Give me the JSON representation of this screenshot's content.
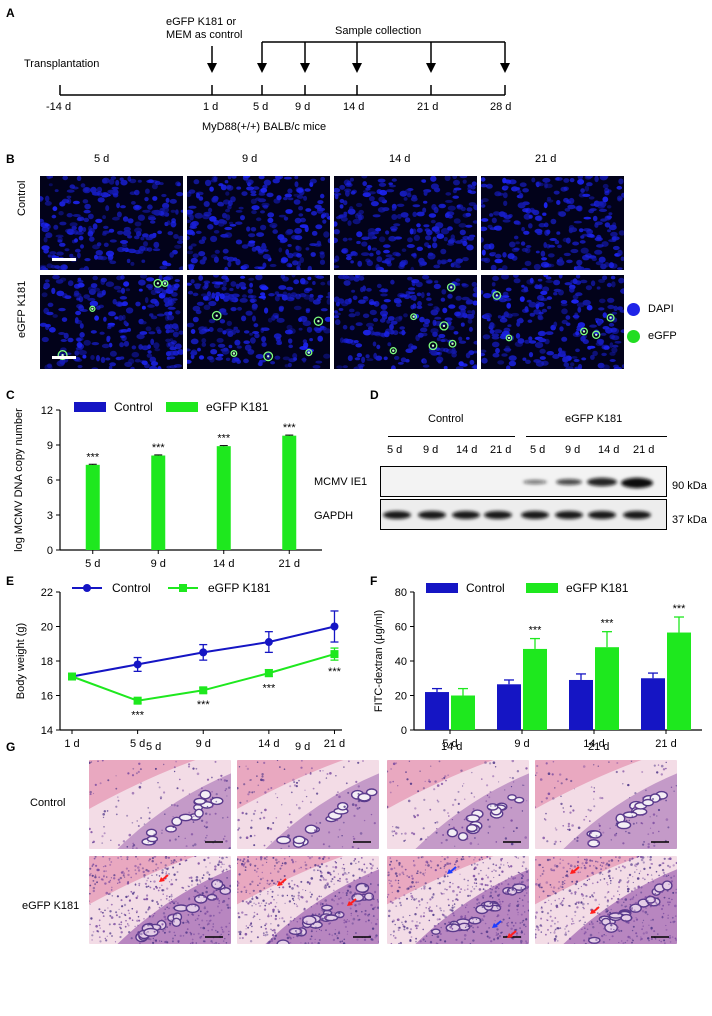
{
  "panels": {
    "A": "A",
    "B": "B",
    "C": "C",
    "D": "D",
    "E": "E",
    "F": "F",
    "G": "G"
  },
  "panelA": {
    "transplantation": "Transplantation",
    "injection_line1": "eGFP K181 or",
    "injection_line2": "MEM as control",
    "sample_collection": "Sample collection",
    "mice": "MyD88(+/+) BALB/c mice",
    "days": [
      "-14 d",
      "1 d",
      "5 d",
      "9 d",
      "14 d",
      "21 d",
      "28 d"
    ]
  },
  "panelB": {
    "columns": [
      "5 d",
      "9 d",
      "14 d",
      "21 d"
    ],
    "rows": [
      "Control",
      "eGFP K181"
    ],
    "legend": [
      {
        "label": "DAPI",
        "color": "#1f24e8"
      },
      {
        "label": "eGFP",
        "color": "#22dd22"
      }
    ]
  },
  "panelD": {
    "groups": [
      "Control",
      "eGFP K181"
    ],
    "lanes": [
      "5 d",
      "9 d",
      "14 d",
      "21 d",
      "5 d",
      "9 d",
      "14 d",
      "21 d"
    ],
    "rows": [
      {
        "name": "MCMV IE1",
        "size": "90 kDa"
      },
      {
        "name": "GAPDH",
        "size": "37 kDa"
      }
    ]
  },
  "panelG": {
    "columns": [
      "5 d",
      "9 d",
      "14 d",
      "21 d"
    ],
    "rows": [
      "Control",
      "eGFP K181"
    ]
  },
  "colors": {
    "control": "#1515c4",
    "egfp": "#1ee81e"
  },
  "chart_data": [
    {
      "panel": "C",
      "type": "bar",
      "ylabel": "log MCMV DNA copy number",
      "xlabel": "",
      "categories": [
        "5 d",
        "9 d",
        "14 d",
        "21 d"
      ],
      "ylim": [
        0,
        12
      ],
      "yticks": [
        0,
        3,
        6,
        9,
        12
      ],
      "series": [
        {
          "name": "Control",
          "values": [
            0,
            0,
            0,
            0
          ]
        },
        {
          "name": "eGFP K181",
          "values": [
            7.3,
            8.1,
            8.9,
            9.8
          ],
          "errors": [
            0.05,
            0.05,
            0.05,
            0.05
          ]
        }
      ],
      "annotations": [
        "***",
        "***",
        "***",
        "***"
      ],
      "legend_position": "top"
    },
    {
      "panel": "E",
      "type": "line",
      "ylabel": "Body weight (g)",
      "xlabel": "",
      "categories": [
        "1 d",
        "5 d",
        "9 d",
        "14 d",
        "21 d"
      ],
      "ylim": [
        14,
        22
      ],
      "yticks": [
        14,
        16,
        18,
        20,
        22
      ],
      "series": [
        {
          "name": "Control",
          "values": [
            17.1,
            17.8,
            18.5,
            19.1,
            20.0
          ],
          "errors": [
            0.1,
            0.4,
            0.45,
            0.6,
            0.9
          ]
        },
        {
          "name": "eGFP K181",
          "values": [
            17.1,
            15.7,
            16.3,
            17.3,
            18.4
          ],
          "errors": [
            0.1,
            0.15,
            0.15,
            0.2,
            0.35
          ]
        }
      ],
      "annotations": [
        "",
        "***",
        "***",
        "***",
        "***"
      ],
      "legend_position": "top"
    },
    {
      "panel": "F",
      "type": "bar",
      "ylabel": "FITC-dextran (μg/ml)",
      "xlabel": "",
      "categories": [
        "5 d",
        "9 d",
        "14 d",
        "21 d"
      ],
      "ylim": [
        0,
        80
      ],
      "yticks": [
        0,
        20,
        40,
        60,
        80
      ],
      "series": [
        {
          "name": "Control",
          "values": [
            22,
            26.5,
            29,
            30
          ],
          "errors": [
            2,
            2.5,
            3.5,
            3
          ]
        },
        {
          "name": "eGFP K181",
          "values": [
            20,
            47,
            48,
            56.5
          ],
          "errors": [
            4,
            6,
            9,
            9
          ]
        }
      ],
      "annotations": [
        "",
        "***",
        "***",
        "***"
      ],
      "legend_position": "top"
    }
  ]
}
